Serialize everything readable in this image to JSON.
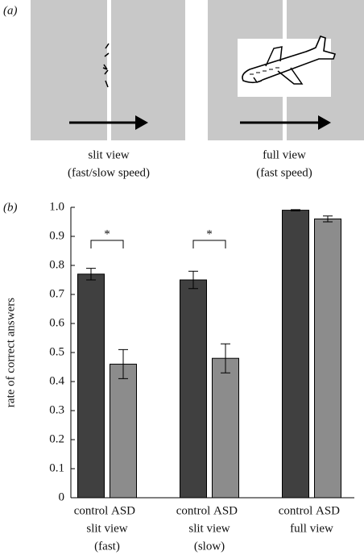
{
  "panel_a": {
    "label": "(a)",
    "captions": [
      [
        "slit view",
        "(fast/slow speed)"
      ],
      [
        "full view",
        "(fast speed)"
      ]
    ]
  },
  "chart_data": {
    "type": "bar",
    "panel_label": "(b)",
    "y_label": "rate of correct answers",
    "categories": [
      [
        "slit view",
        "(fast)"
      ],
      [
        "slit view",
        "(slow)"
      ],
      [
        "full view"
      ]
    ],
    "series": [
      {
        "name": "control",
        "color": "#404040",
        "values": [
          0.77,
          0.75,
          0.99
        ],
        "errors": [
          0.02,
          0.03,
          0.002
        ]
      },
      {
        "name": "ASD",
        "color": "#8c8c8c",
        "values": [
          0.46,
          0.48,
          0.96
        ],
        "errors": [
          0.05,
          0.05,
          0.01
        ]
      }
    ],
    "significance": [
      "*",
      "*",
      null
    ],
    "ylim": [
      0,
      1
    ],
    "yticks": [
      0,
      0.1,
      0.2,
      0.3,
      0.4,
      0.5,
      0.6,
      0.7,
      0.8,
      0.9,
      {
        "value": 1,
        "label": "1.0"
      }
    ]
  }
}
